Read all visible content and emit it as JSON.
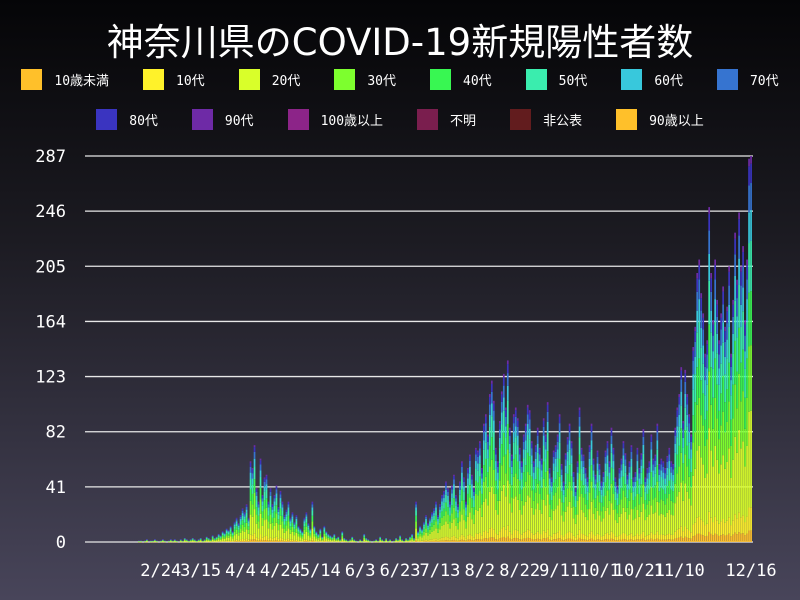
{
  "chart_data": {
    "type": "bar",
    "stacked": true,
    "title": "神奈川県のCOVID-19新規陽性者数",
    "xlabel": "",
    "ylabel": "",
    "ylim": [
      0,
      287
    ],
    "y_ticks": [
      "0",
      "41",
      "82",
      "123",
      "164",
      "205",
      "246",
      "287"
    ],
    "x_ticks": [
      "2/24",
      "3/15",
      "4/4",
      "4/24",
      "5/14",
      "6/3",
      "6/23",
      "7/13",
      "8/2",
      "8/22",
      "9/11",
      "10/1",
      "10/21",
      "11/10",
      "12/16"
    ],
    "x_range": [
      "1/17",
      "12/16"
    ],
    "grid": "horizontal",
    "legend_position": "top",
    "legend": [
      {
        "name": "10歳未満",
        "color": "#ffc02a"
      },
      {
        "name": "10代",
        "color": "#fff22a"
      },
      {
        "name": "20代",
        "color": "#d9ff2a"
      },
      {
        "name": "30代",
        "color": "#7dff2e"
      },
      {
        "name": "40代",
        "color": "#38f752"
      },
      {
        "name": "50代",
        "color": "#3aedae"
      },
      {
        "name": "60代",
        "color": "#38c8dc"
      },
      {
        "name": "70代",
        "color": "#3674d0"
      },
      {
        "name": "80代",
        "color": "#3a34c0"
      },
      {
        "name": "90代",
        "color": "#6e2aa6"
      },
      {
        "name": "100歳以上",
        "color": "#8c2488"
      },
      {
        "name": "不明",
        "color": "#7a1e4e"
      },
      {
        "name": "非公表",
        "color": "#621c1e"
      },
      {
        "name": "90歳以上",
        "color": "#ffc02a"
      }
    ],
    "daily_totals": [
      0,
      0,
      0,
      0,
      0,
      0,
      0,
      0,
      0,
      0,
      0,
      0,
      0,
      0,
      0,
      0,
      0,
      0,
      0,
      0,
      0,
      0,
      0,
      0,
      0,
      0,
      0,
      1,
      1,
      0,
      1,
      2,
      0,
      1,
      1,
      2,
      1,
      0,
      1,
      2,
      1,
      0,
      1,
      2,
      1,
      2,
      1,
      0,
      2,
      1,
      3,
      2,
      1,
      2,
      3,
      2,
      1,
      2,
      3,
      1,
      2,
      4,
      3,
      2,
      5,
      3,
      4,
      6,
      5,
      8,
      7,
      10,
      9,
      12,
      8,
      15,
      18,
      14,
      20,
      25,
      22,
      28,
      18,
      60,
      55,
      72,
      40,
      30,
      62,
      35,
      48,
      50,
      30,
      40,
      28,
      35,
      42,
      26,
      38,
      30,
      20,
      24,
      30,
      18,
      22,
      15,
      20,
      12,
      10,
      8,
      18,
      22,
      14,
      10,
      30,
      12,
      8,
      6,
      10,
      4,
      12,
      8,
      6,
      5,
      4,
      6,
      3,
      4,
      2,
      8,
      3,
      2,
      1,
      2,
      4,
      2,
      1,
      0,
      2,
      1,
      6,
      3,
      2,
      1,
      0,
      1,
      2,
      1,
      4,
      2,
      1,
      3,
      1,
      2,
      0,
      1,
      3,
      2,
      5,
      2,
      1,
      3,
      2,
      4,
      6,
      3,
      30,
      8,
      12,
      10,
      15,
      20,
      14,
      18,
      22,
      25,
      30,
      20,
      28,
      35,
      38,
      45,
      40,
      30,
      42,
      50,
      35,
      28,
      45,
      60,
      48,
      30,
      55,
      65,
      50,
      40,
      70,
      68,
      75,
      55,
      88,
      95,
      80,
      110,
      120,
      105,
      70,
      60,
      90,
      112,
      125,
      100,
      135,
      85,
      65,
      95,
      100,
      92,
      70,
      60,
      80,
      88,
      102,
      98,
      75,
      60,
      72,
      85,
      70,
      62,
      92,
      80,
      104,
      55,
      48,
      68,
      72,
      80,
      95,
      58,
      45,
      66,
      78,
      88,
      75,
      52,
      40,
      60,
      100,
      70,
      65,
      55,
      48,
      72,
      88,
      62,
      50,
      68,
      58,
      45,
      52,
      68,
      75,
      60,
      85,
      70,
      48,
      42,
      55,
      62,
      75,
      66,
      50,
      60,
      72,
      48,
      52,
      70,
      55,
      66,
      84,
      48,
      55,
      60,
      80,
      62,
      65,
      88,
      58,
      62,
      60,
      55,
      64,
      70,
      60,
      58,
      85,
      100,
      110,
      130,
      90,
      128,
      110,
      95,
      80,
      145,
      160,
      200,
      210,
      185,
      170,
      140,
      150,
      249,
      200,
      165,
      210,
      180,
      150,
      170,
      190,
      160,
      175,
      205,
      140,
      180,
      230,
      195,
      245,
      205,
      220,
      165,
      210,
      285,
      287
    ]
  }
}
